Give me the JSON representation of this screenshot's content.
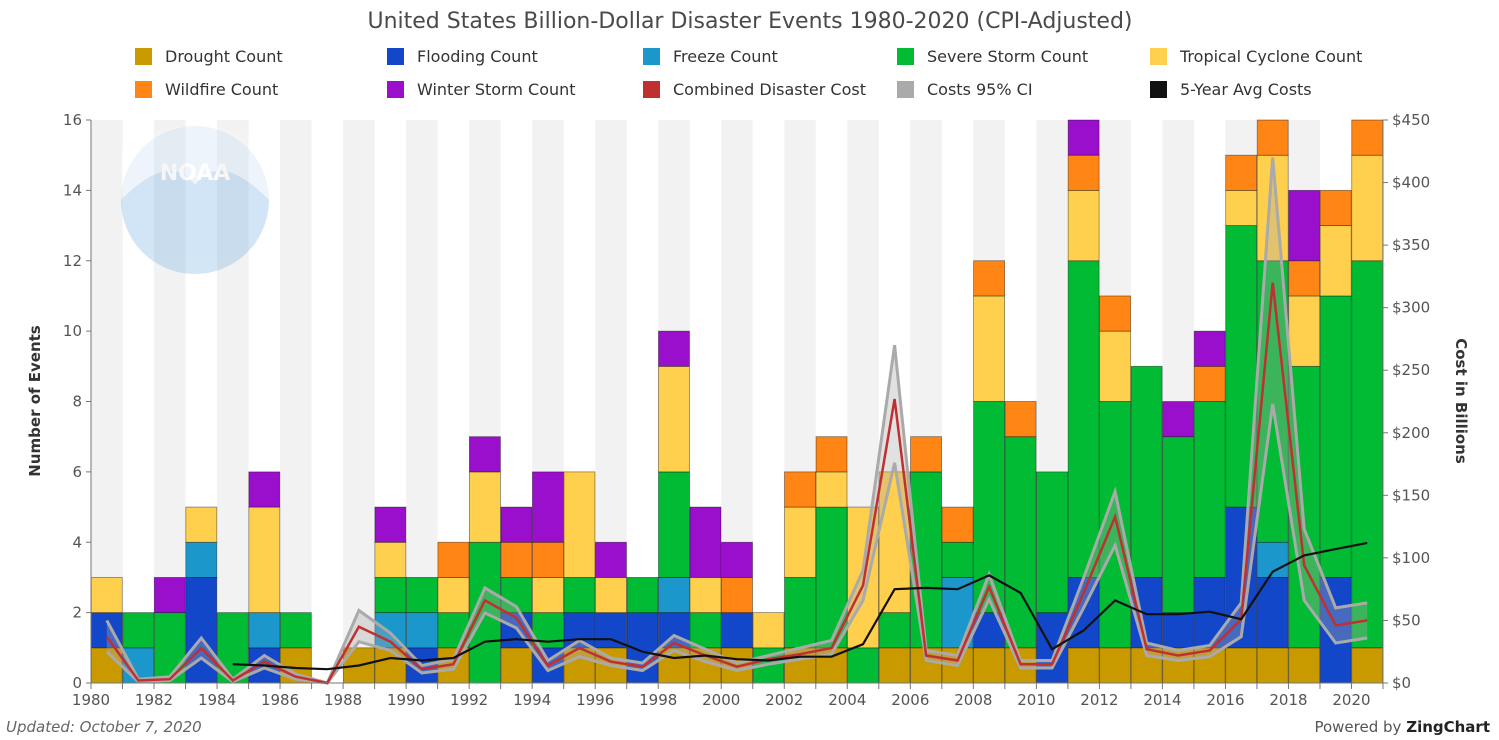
{
  "chart_data": {
    "type": "bar",
    "stacked": true,
    "title": "United States Billion-Dollar Disaster Events 1980-2020 (CPI-Adjusted)",
    "ylabel": "Number of Events",
    "y2label": "Cost in Billions",
    "ylim": [
      0,
      16
    ],
    "y2lim": [
      0,
      450
    ],
    "y_ticks": [
      "0",
      "2",
      "4",
      "6",
      "8",
      "10",
      "12",
      "14",
      "16"
    ],
    "y2_ticks": [
      "$0",
      "$50",
      "$100",
      "$150",
      "$200",
      "$250",
      "$300",
      "$350",
      "$400",
      "$450"
    ],
    "x_tick_labels": [
      "1980",
      "1982",
      "1984",
      "1986",
      "1988",
      "1990",
      "1992",
      "1994",
      "1996",
      "1998",
      "2000",
      "2002",
      "2004",
      "2006",
      "2008",
      "2010",
      "2012",
      "2014",
      "2016",
      "2018",
      "2020"
    ],
    "categories": [
      1980,
      1981,
      1982,
      1983,
      1984,
      1985,
      1986,
      1987,
      1988,
      1989,
      1990,
      1991,
      1992,
      1993,
      1994,
      1995,
      1996,
      1997,
      1998,
      1999,
      2000,
      2001,
      2002,
      2003,
      2004,
      2005,
      2006,
      2007,
      2008,
      2009,
      2010,
      2011,
      2012,
      2013,
      2014,
      2015,
      2016,
      2017,
      2018,
      2019,
      2020
    ],
    "legend_position": "top",
    "series": [
      {
        "name": "Drought Count",
        "color": "#c99a00",
        "values": [
          1,
          0,
          0,
          0,
          0,
          0,
          1,
          0,
          1,
          1,
          0,
          1,
          0,
          1,
          0,
          1,
          1,
          0,
          1,
          1,
          1,
          0,
          1,
          1,
          0,
          1,
          1,
          1,
          1,
          1,
          0,
          1,
          1,
          1,
          1,
          1,
          1,
          1,
          1,
          0,
          1
        ]
      },
      {
        "name": "Flooding Count",
        "color": "#1347c9",
        "values": [
          1,
          0,
          0,
          3,
          0,
          1,
          0,
          0,
          0,
          0,
          1,
          0,
          0,
          1,
          1,
          1,
          1,
          2,
          1,
          0,
          1,
          0,
          0,
          0,
          0,
          0,
          0,
          0,
          1,
          0,
          2,
          2,
          0,
          2,
          1,
          2,
          4,
          2,
          0,
          3,
          0
        ]
      },
      {
        "name": "Freeze Count",
        "color": "#1b97cc",
        "values": [
          0,
          1,
          0,
          1,
          0,
          1,
          0,
          0,
          0,
          1,
          1,
          0,
          0,
          0,
          0,
          0,
          0,
          0,
          1,
          0,
          0,
          0,
          0,
          0,
          0,
          0,
          0,
          2,
          0,
          0,
          0,
          0,
          0,
          0,
          0,
          0,
          0,
          1,
          0,
          0,
          0
        ]
      },
      {
        "name": "Severe Storm Count",
        "color": "#00bb33",
        "values": [
          0,
          1,
          2,
          0,
          2,
          0,
          1,
          0,
          0,
          1,
          1,
          1,
          4,
          1,
          1,
          1,
          0,
          1,
          3,
          1,
          0,
          1,
          2,
          4,
          1,
          1,
          5,
          1,
          6,
          6,
          4,
          9,
          7,
          6,
          5,
          5,
          8,
          8,
          8,
          8,
          11
        ]
      },
      {
        "name": "Tropical Cyclone Count",
        "color": "#ffd04d",
        "values": [
          1,
          0,
          0,
          1,
          0,
          3,
          0,
          0,
          0,
          1,
          0,
          1,
          2,
          0,
          1,
          3,
          1,
          0,
          3,
          1,
          0,
          1,
          2,
          1,
          4,
          4,
          0,
          0,
          3,
          0,
          0,
          2,
          2,
          0,
          0,
          0,
          1,
          3,
          2,
          2,
          3
        ]
      },
      {
        "name": "Wildfire Count",
        "color": "#ff8515",
        "values": [
          0,
          0,
          0,
          0,
          0,
          0,
          0,
          0,
          0,
          0,
          0,
          1,
          0,
          1,
          1,
          0,
          0,
          0,
          0,
          0,
          1,
          0,
          1,
          1,
          0,
          0,
          1,
          1,
          1,
          1,
          0,
          1,
          1,
          0,
          0,
          1,
          1,
          1,
          1,
          1,
          1
        ]
      },
      {
        "name": "Winter Storm Count",
        "color": "#9a0fcc",
        "values": [
          0,
          0,
          1,
          0,
          0,
          1,
          0,
          0,
          0,
          1,
          0,
          0,
          1,
          1,
          2,
          0,
          1,
          0,
          1,
          2,
          1,
          0,
          0,
          0,
          0,
          0,
          0,
          0,
          0,
          0,
          0,
          1,
          0,
          0,
          1,
          1,
          0,
          0,
          2,
          0,
          0
        ]
      }
    ],
    "cost_series": [
      {
        "name": "Combined Disaster Cost",
        "color": "#c03030",
        "values": [
          37,
          2,
          3,
          28,
          2,
          17,
          5,
          0,
          45,
          33,
          11,
          15,
          66,
          52,
          14,
          28,
          17,
          13,
          32,
          22,
          13,
          19,
          23,
          28,
          78,
          227,
          22,
          18,
          77,
          15,
          15,
          72,
          133,
          27,
          22,
          26,
          51,
          320,
          94,
          46,
          50
        ]
      },
      {
        "name": "Costs 95% CI",
        "color": "#aaaaaa",
        "type": "band",
        "upper": [
          50,
          3,
          5,
          36,
          3,
          22,
          7,
          0,
          58,
          40,
          14,
          19,
          76,
          61,
          18,
          34,
          20,
          16,
          38,
          27,
          16,
          22,
          28,
          34,
          90,
          270,
          26,
          22,
          87,
          18,
          18,
          84,
          153,
          32,
          26,
          30,
          64,
          420,
          123,
          60,
          64
        ],
        "lower": [
          25,
          1,
          2,
          20,
          1,
          12,
          3,
          0,
          33,
          26,
          8,
          11,
          56,
          44,
          10,
          21,
          14,
          10,
          26,
          17,
          10,
          15,
          19,
          23,
          66,
          176,
          18,
          14,
          67,
          12,
          12,
          60,
          110,
          22,
          18,
          21,
          37,
          223,
          66,
          32,
          36
        ]
      },
      {
        "name": "5-Year Avg Costs",
        "color": "#111111",
        "x": [
          1984,
          1985,
          1986,
          1987,
          1988,
          1989,
          1990,
          1991,
          1992,
          1993,
          1994,
          1995,
          1996,
          1997,
          1998,
          1999,
          2000,
          2001,
          2002,
          2003,
          2004,
          2005,
          2006,
          2007,
          2008,
          2009,
          2010,
          2011,
          2012,
          2013,
          2014,
          2015,
          2016,
          2017,
          2018,
          2019,
          2020
        ],
        "values": [
          15,
          14,
          12,
          11,
          14,
          20,
          18,
          20,
          33,
          35,
          33,
          35,
          35,
          25,
          20,
          22,
          19,
          18,
          21,
          21,
          31,
          75,
          76,
          75,
          86,
          72,
          27,
          42,
          66,
          55,
          55,
          57,
          51,
          89,
          102,
          107,
          112
        ]
      }
    ]
  },
  "watermark": {
    "logo_text": "NOAA"
  },
  "footer": {
    "updated": "Updated: October 7, 2020",
    "powered_prefix": "Powered by ",
    "powered_brand": "ZingChart"
  }
}
